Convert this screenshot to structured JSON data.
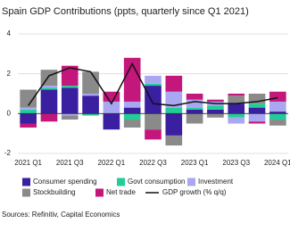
{
  "chart_data": {
    "type": "stacked-bar-line",
    "title": "Spain GDP Contributions (ppts, quarterly since Q1 2021)",
    "categories": [
      "2021 Q1",
      null,
      "2021 Q3",
      null,
      "2022 Q1",
      null,
      "2022 Q3",
      null,
      "2023 Q1",
      null,
      "2023 Q3",
      null,
      "2024 Q1"
    ],
    "series": [
      {
        "name": "Consumer spending",
        "color": "#3a1fa0",
        "values": [
          -0.5,
          1.2,
          1.3,
          0.9,
          -0.8,
          0.3,
          1.4,
          -1.1,
          0.2,
          0.2,
          0.5,
          0.3,
          0.1
        ]
      },
      {
        "name": "Govt consumption",
        "color": "#22cc98",
        "values": [
          0.2,
          0.1,
          0.1,
          -0.1,
          0.0,
          -0.3,
          0.1,
          0.3,
          0.1,
          0.2,
          -0.2,
          0.2,
          -0.3
        ]
      },
      {
        "name": "Investment",
        "color": "#aaa7f2",
        "values": [
          0.1,
          0.1,
          -0.1,
          0.1,
          0.6,
          0.3,
          0.4,
          0.8,
          0.4,
          0.2,
          -0.3,
          -0.4,
          0.5
        ]
      },
      {
        "name": "Stockbuilding",
        "color": "#8a8a8a",
        "values": [
          0.9,
          0.8,
          -0.2,
          1.1,
          0.0,
          -0.4,
          -0.8,
          -0.5,
          -0.5,
          -0.2,
          0.4,
          0.5,
          -0.3
        ]
      },
      {
        "name": "Net trade",
        "color": "#c4177c",
        "values": [
          -0.2,
          -0.4,
          1.0,
          0.0,
          0.5,
          2.2,
          -0.5,
          0.8,
          0.3,
          0.1,
          0.1,
          -0.1,
          0.5
        ]
      }
    ],
    "line": {
      "name": "GDP growth (% q/q)",
      "color": "#111111",
      "values": [
        0.4,
        1.9,
        2.3,
        2.1,
        0.5,
        2.5,
        0.5,
        0.4,
        0.6,
        0.5,
        0.5,
        0.6,
        0.8
      ]
    },
    "ylim": [
      -2,
      4
    ],
    "yticks": [
      -2,
      0,
      2,
      4
    ],
    "grid": true,
    "source": "Sources: Refinitiv, Capital Economics"
  }
}
